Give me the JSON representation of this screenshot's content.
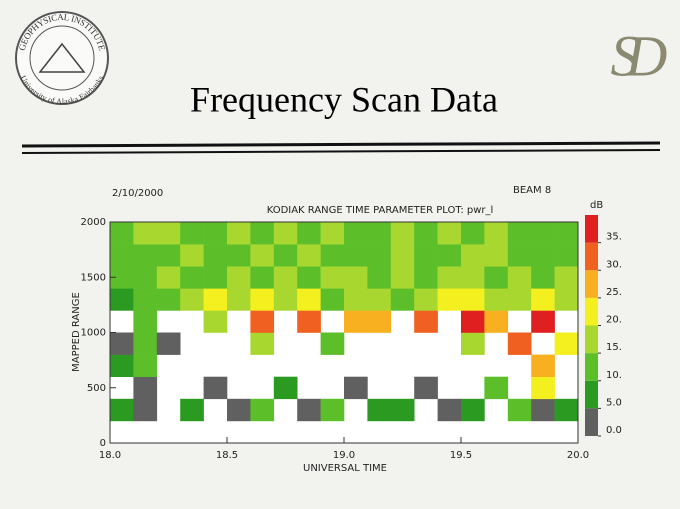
{
  "header": {
    "logo_top": "GEOPHYSICAL INSTITUTE",
    "logo_bottom": "University of Alaska Fairbanks",
    "logo_right": "SD",
    "title": "Frequency Scan Data"
  },
  "chart_data": {
    "type": "heatmap",
    "title": "KODIAK RANGE TIME PARAMETER PLOT: pwr_l",
    "date": "2/10/2000",
    "beam": "BEAM  8",
    "xlabel": "UNIVERSAL TIME",
    "ylabel": "MAPPED RANGE",
    "xlim": [
      18,
      20
    ],
    "ylim": [
      0,
      2000
    ],
    "xticks": [
      {
        "value": 18,
        "label": "18.0"
      },
      {
        "value": 18.5,
        "label": "18.5"
      },
      {
        "value": 19,
        "label": "19.0"
      },
      {
        "value": 19.5,
        "label": "19.5"
      },
      {
        "value": 20,
        "label": "20.0"
      }
    ],
    "yticks": [
      0,
      500,
      1000,
      1500,
      2000
    ],
    "x_edges": [
      18,
      18.1,
      18.2,
      18.3,
      18.4,
      18.5,
      18.6,
      18.7,
      18.8,
      18.9,
      19,
      19.1,
      19.2,
      19.3,
      19.4,
      19.5,
      19.6,
      19.7,
      19.8,
      19.9,
      20
    ],
    "y_edges": [
      0,
      200,
      400,
      600,
      800,
      1000,
      1200,
      1400,
      1600,
      1800,
      2000
    ],
    "values": [
      [
        null,
        null,
        null,
        null,
        null,
        null,
        null,
        null,
        null,
        null,
        null,
        null,
        null,
        null,
        null,
        null,
        null,
        null,
        null,
        null
      ],
      [
        8,
        4,
        null,
        6,
        null,
        3,
        12,
        null,
        4,
        11,
        null,
        5,
        9,
        null,
        3,
        7,
        null,
        10,
        4,
        6
      ],
      [
        null,
        4,
        null,
        null,
        3,
        null,
        null,
        5,
        null,
        null,
        3,
        null,
        null,
        4,
        null,
        null,
        12,
        null,
        22,
        null
      ],
      [
        5,
        12,
        null,
        null,
        null,
        null,
        null,
        null,
        null,
        null,
        null,
        null,
        null,
        null,
        null,
        null,
        null,
        null,
        28,
        null
      ],
      [
        3,
        14,
        4,
        null,
        null,
        null,
        16,
        null,
        null,
        12,
        null,
        null,
        null,
        null,
        null,
        18,
        null,
        30,
        null,
        24
      ],
      [
        null,
        12,
        null,
        null,
        18,
        null,
        32,
        null,
        30,
        null,
        28,
        27,
        null,
        33,
        null,
        36,
        27,
        null,
        38,
        null
      ],
      [
        8,
        14,
        11,
        15,
        20,
        16,
        22,
        17,
        20,
        14,
        16,
        19,
        14,
        18,
        22,
        20,
        18,
        16,
        22,
        17
      ],
      [
        12,
        13,
        16,
        14,
        13,
        17,
        14,
        15,
        13,
        16,
        15,
        14,
        17,
        13,
        16,
        15,
        14,
        17,
        13,
        15
      ],
      [
        10,
        14,
        13,
        15,
        12,
        14,
        16,
        13,
        15,
        12,
        14,
        13,
        15,
        14,
        13,
        17,
        15,
        12,
        14,
        11
      ],
      [
        12,
        15,
        16,
        13,
        14,
        15,
        13,
        16,
        14,
        15,
        12,
        14,
        16,
        13,
        15,
        14,
        16,
        13,
        12,
        10
      ]
    ],
    "colorbar": {
      "unit": "dB",
      "lim": [
        0,
        40
      ],
      "colors": [
        "#606060",
        "#2a9a20",
        "#5cbf2a",
        "#a8d830",
        "#f4f020",
        "#f8b020",
        "#f06020",
        "#e02020"
      ],
      "ticks": [
        {
          "value": 0,
          "label": "0.0"
        },
        {
          "value": 5,
          "label": "5.0"
        },
        {
          "value": 10,
          "label": "10."
        },
        {
          "value": 15,
          "label": "15."
        },
        {
          "value": 20,
          "label": "20."
        },
        {
          "value": 25,
          "label": "25."
        },
        {
          "value": 30,
          "label": "30."
        },
        {
          "value": 35,
          "label": "35."
        }
      ]
    }
  }
}
